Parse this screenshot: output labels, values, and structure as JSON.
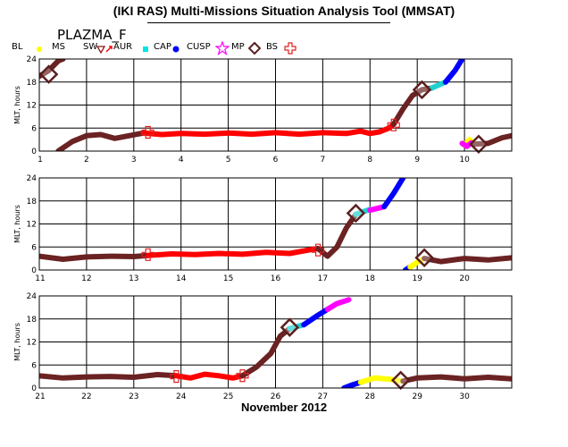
{
  "title": "(IKI RAS) Multi-Missions Situation Analysis Tool (MMSAT)",
  "mission": "PLAZMA_F",
  "legend": [
    {
      "label": "BL",
      "color": "#000000",
      "icon": "none"
    },
    {
      "label": "MS",
      "color": "#ffff00",
      "icon": "dot-icon"
    },
    {
      "label": "SW",
      "color": "#8b1a1a",
      "icon": "triangle-down-icon"
    },
    {
      "label": "AUR",
      "color": "#ff0000",
      "icon": "arrow-icon"
    },
    {
      "label": "CAP",
      "color": "#00e5e5",
      "icon": "square-icon"
    },
    {
      "label": "CUSP",
      "color": "#0000ff",
      "icon": "dot-icon"
    },
    {
      "label": "MP",
      "color": "#ff00ff",
      "icon": "star-icon"
    },
    {
      "label": "BS",
      "color": "#5b1f1f",
      "icon": "diamond-icon"
    },
    {
      "label": "",
      "color": "#e02020",
      "icon": "cross-icon"
    }
  ],
  "month_label": "November 2012",
  "chart_data": [
    {
      "type": "line",
      "ylabel": "MLT, hours",
      "xlim": [
        1,
        11
      ],
      "ylim": [
        0,
        24
      ],
      "xticks": [
        "1",
        "2",
        "3",
        "4",
        "5",
        "6",
        "7",
        "8",
        "9",
        "10"
      ],
      "yticks": [
        "0",
        "6",
        "12",
        "18",
        "24"
      ],
      "grid": true,
      "segments": [
        {
          "region": "SW",
          "color": "#6b2222",
          "points": [
            [
              1.0,
              19.5
            ],
            [
              1.2,
              21
            ],
            [
              1.4,
              23.5
            ],
            [
              1.5,
              24
            ]
          ]
        },
        {
          "region": "SW",
          "color": "#6b2222",
          "points": [
            [
              1.4,
              0
            ],
            [
              1.7,
              2.5
            ],
            [
              2.0,
              4.0
            ],
            [
              2.3,
              4.3
            ],
            [
              2.6,
              3.3
            ],
            [
              2.9,
              4.0
            ],
            [
              3.2,
              4.7
            ]
          ]
        },
        {
          "region": "AUR",
          "color": "#ff0000",
          "points": [
            [
              3.2,
              4.7
            ],
            [
              3.6,
              4.3
            ],
            [
              4.0,
              4.6
            ],
            [
              4.5,
              4.4
            ],
            [
              5.0,
              4.7
            ],
            [
              5.5,
              4.4
            ],
            [
              6.0,
              4.8
            ],
            [
              6.5,
              4.4
            ],
            [
              7.0,
              4.8
            ],
            [
              7.5,
              4.6
            ],
            [
              7.8,
              5.2
            ],
            [
              8.0,
              4.6
            ],
            [
              8.2,
              5.0
            ],
            [
              8.4,
              6.0
            ],
            [
              8.5,
              7.0
            ]
          ]
        },
        {
          "region": "SW",
          "color": "#6b2222",
          "points": [
            [
              8.5,
              7.0
            ],
            [
              8.7,
              11
            ],
            [
              8.9,
              14.5
            ],
            [
              9.1,
              16.0
            ],
            [
              9.3,
              16.4
            ]
          ]
        },
        {
          "region": "CAP",
          "color": "#22d0d0",
          "points": [
            [
              9.3,
              16.4
            ],
            [
              9.6,
              18.0
            ]
          ]
        },
        {
          "region": "CUSP",
          "color": "#0000ff",
          "points": [
            [
              9.6,
              18.0
            ],
            [
              9.8,
              21
            ],
            [
              9.95,
              24
            ]
          ]
        },
        {
          "region": "MS",
          "color": "#ffff00",
          "points": [
            [
              10.0,
              1.5
            ],
            [
              10.1,
              3.0
            ],
            [
              10.2,
              2.0
            ]
          ]
        },
        {
          "region": "MP",
          "color": "#ff00ff",
          "points": [
            [
              9.95,
              2.0
            ],
            [
              10.05,
              1.2
            ],
            [
              10.15,
              2.2
            ]
          ]
        },
        {
          "region": "SW",
          "color": "#6b2222",
          "points": [
            [
              10.2,
              1.8
            ],
            [
              10.5,
              2.0
            ],
            [
              10.8,
              3.5
            ],
            [
              11.0,
              4.0
            ]
          ]
        }
      ],
      "bs_marks": [
        [
          1.2,
          20.0
        ],
        [
          9.1,
          16.0
        ],
        [
          10.3,
          1.8
        ]
      ],
      "cross_marks": [
        [
          3.3,
          4.9
        ],
        [
          8.5,
          6.8
        ]
      ]
    },
    {
      "type": "line",
      "ylabel": "MLT, hours",
      "xlim": [
        11,
        21
      ],
      "ylim": [
        0,
        24
      ],
      "xticks": [
        "11",
        "12",
        "13",
        "14",
        "15",
        "16",
        "17",
        "18",
        "19",
        "20"
      ],
      "yticks": [
        "0",
        "6",
        "12",
        "18",
        "24"
      ],
      "grid": true,
      "segments": [
        {
          "region": "SW",
          "color": "#6b2222",
          "points": [
            [
              11.0,
              3.6
            ],
            [
              11.5,
              2.8
            ],
            [
              12.0,
              3.4
            ],
            [
              12.5,
              3.6
            ],
            [
              13.0,
              3.5
            ],
            [
              13.3,
              3.8
            ]
          ]
        },
        {
          "region": "AUR",
          "color": "#ff0000",
          "points": [
            [
              13.3,
              3.8
            ],
            [
              13.8,
              4.2
            ],
            [
              14.3,
              4.0
            ],
            [
              14.8,
              4.3
            ],
            [
              15.3,
              4.1
            ],
            [
              15.8,
              4.6
            ],
            [
              16.3,
              4.3
            ],
            [
              16.7,
              5.2
            ],
            [
              16.9,
              5.6
            ]
          ]
        },
        {
          "region": "SW",
          "color": "#6b2222",
          "points": [
            [
              16.9,
              5.6
            ],
            [
              17.1,
              3.6
            ],
            [
              17.3,
              6.0
            ],
            [
              17.5,
              11.0
            ],
            [
              17.7,
              14.5
            ]
          ]
        },
        {
          "region": "CAP",
          "color": "#22d0d0",
          "points": [
            [
              17.7,
              14.5
            ],
            [
              18.0,
              15.8
            ]
          ]
        },
        {
          "region": "MP",
          "color": "#ff00ff",
          "points": [
            [
              18.0,
              15.6
            ],
            [
              18.3,
              16.5
            ]
          ]
        },
        {
          "region": "CUSP",
          "color": "#0000ff",
          "points": [
            [
              18.3,
              16.5
            ],
            [
              18.5,
              20
            ],
            [
              18.7,
              24
            ]
          ]
        },
        {
          "region": "CUSP",
          "color": "#0000ff",
          "points": [
            [
              18.75,
              0
            ],
            [
              18.85,
              0.8
            ]
          ]
        },
        {
          "region": "MS",
          "color": "#ffff00",
          "points": [
            [
              18.85,
              0.8
            ],
            [
              19.0,
              2.0
            ],
            [
              19.15,
              3.0
            ]
          ]
        },
        {
          "region": "SW",
          "color": "#6b2222",
          "points": [
            [
              19.15,
              3.0
            ],
            [
              19.5,
              2.2
            ],
            [
              20.0,
              3.0
            ],
            [
              20.5,
              2.6
            ],
            [
              21.0,
              3.2
            ]
          ]
        }
      ],
      "bs_marks": [
        [
          17.7,
          14.8
        ],
        [
          19.15,
          3.2
        ]
      ],
      "cross_marks": [
        [
          13.3,
          4.0
        ],
        [
          16.9,
          5.2
        ]
      ]
    },
    {
      "type": "line",
      "ylabel": "MLT, hours",
      "xlim": [
        21,
        31
      ],
      "ylim": [
        0,
        24
      ],
      "xticks": [
        "21",
        "22",
        "23",
        "24",
        "25",
        "26",
        "27",
        "28",
        "29",
        "30"
      ],
      "yticks": [
        "0",
        "6",
        "12",
        "18",
        "24"
      ],
      "grid": true,
      "segments": [
        {
          "region": "SW",
          "color": "#6b2222",
          "points": [
            [
              21.0,
              3.2
            ],
            [
              21.5,
              2.6
            ],
            [
              22.0,
              2.9
            ],
            [
              22.5,
              3.0
            ],
            [
              23.0,
              2.8
            ],
            [
              23.5,
              3.5
            ],
            [
              23.9,
              3.2
            ]
          ]
        },
        {
          "region": "AUR",
          "color": "#ff0000",
          "points": [
            [
              23.9,
              3.2
            ],
            [
              24.2,
              2.6
            ],
            [
              24.5,
              3.6
            ],
            [
              24.8,
              3.2
            ],
            [
              25.1,
              2.6
            ],
            [
              25.3,
              3.2
            ]
          ]
        },
        {
          "region": "SW",
          "color": "#6b2222",
          "points": [
            [
              25.3,
              3.2
            ],
            [
              25.6,
              5.5
            ],
            [
              25.9,
              9.0
            ],
            [
              26.1,
              13.5
            ],
            [
              26.3,
              15.5
            ]
          ]
        },
        {
          "region": "CAP",
          "color": "#22d0d0",
          "points": [
            [
              26.3,
              15.5
            ],
            [
              26.6,
              16.5
            ]
          ]
        },
        {
          "region": "CUSP",
          "color": "#0000ff",
          "points": [
            [
              26.6,
              16.5
            ],
            [
              26.9,
              19.0
            ],
            [
              27.1,
              20.5
            ]
          ]
        },
        {
          "region": "MP",
          "color": "#ff00ff",
          "points": [
            [
              27.1,
              20.5
            ],
            [
              27.3,
              22.0
            ],
            [
              27.55,
              23.0
            ]
          ]
        },
        {
          "region": "CUSP",
          "color": "#0000ff",
          "points": [
            [
              27.45,
              0
            ],
            [
              27.6,
              0.7
            ],
            [
              27.8,
              1.5
            ]
          ]
        },
        {
          "region": "MS",
          "color": "#ffff00",
          "points": [
            [
              27.8,
              1.5
            ],
            [
              28.1,
              2.6
            ],
            [
              28.4,
              2.3
            ],
            [
              28.7,
              1.8
            ]
          ]
        },
        {
          "region": "SW",
          "color": "#6b2222",
          "points": [
            [
              28.7,
              1.8
            ],
            [
              29.0,
              2.6
            ],
            [
              29.5,
              2.9
            ],
            [
              30.0,
              2.4
            ],
            [
              30.5,
              2.8
            ],
            [
              31.0,
              2.4
            ]
          ]
        }
      ],
      "bs_marks": [
        [
          26.3,
          15.8
        ],
        [
          28.65,
          2.0
        ]
      ],
      "cross_marks": [
        [
          23.9,
          3.0
        ],
        [
          25.3,
          3.2
        ]
      ]
    }
  ]
}
